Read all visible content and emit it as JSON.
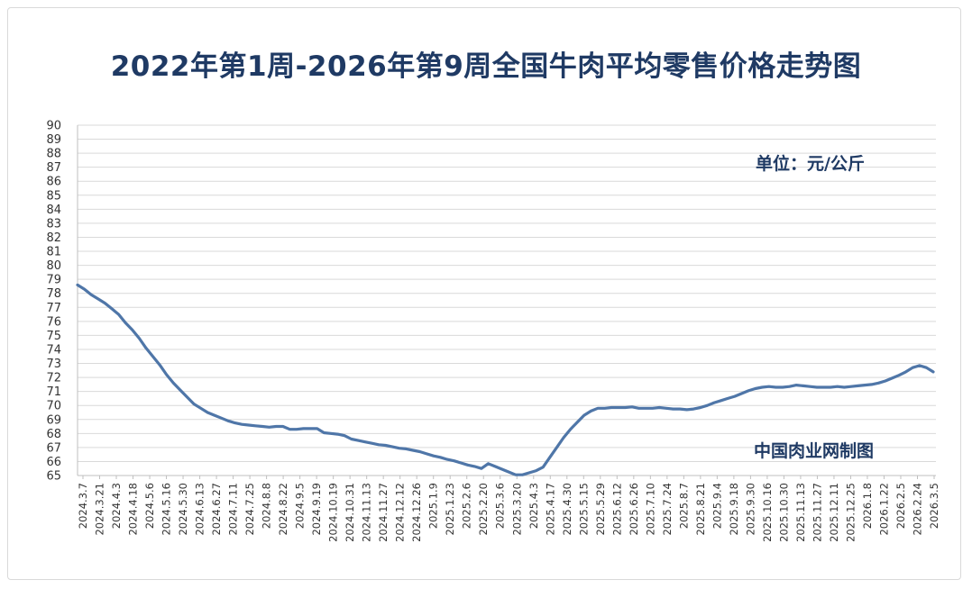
{
  "chart_data": {
    "type": "line",
    "title": "2022年第1周-2026年第9周全国牛肉平均零售价格走势图",
    "unit_label": "单位：元/公斤",
    "source_label": "中国肉业网制图",
    "ylim": [
      65,
      90
    ],
    "yticks": [
      65,
      66,
      67,
      68,
      69,
      70,
      71,
      72,
      73,
      74,
      75,
      76,
      77,
      78,
      79,
      80,
      81,
      82,
      83,
      84,
      85,
      86,
      87,
      88,
      89,
      90
    ],
    "grid": true,
    "line_color": "#4f76a8",
    "x_tick_labels": [
      "2024.3.7",
      "2024.3.21",
      "2024.4.3",
      "2024.4.18",
      "2024.5.6",
      "2024.5.16",
      "2024.5.30",
      "2024.6.13",
      "2024.6.27",
      "2024.7.11",
      "2024.7.25",
      "2024.8.8",
      "2024.8.22",
      "2024.9.5",
      "2024.9.19",
      "2024.10.19",
      "2024.10.31",
      "2024.11.13",
      "2024.11.27",
      "2024.12.12",
      "2024.12.26",
      "2025.1.9",
      "2025.1.23",
      "2025.2.6",
      "2025.2.20",
      "2025.3.6",
      "2025.3.20",
      "2025.4.3",
      "2025.4.17",
      "2025.4.30",
      "2025.5.15",
      "2025.5.29",
      "2025.6.12",
      "2025.6.26",
      "2025.7.10",
      "2025.7.24",
      "2025.8.7",
      "2025.8.21",
      "2025.9.4",
      "2025.9.18",
      "2025.9.30",
      "2025.10.16",
      "2025.10.30",
      "2025.11.13",
      "2025.11.27",
      "2025.12.11",
      "2025.12.25",
      "2026.1.8",
      "2026.1.22",
      "2026.2.5",
      "2026.2.24",
      "2026.3.5"
    ],
    "values": [
      78.6,
      78.3,
      77.9,
      77.6,
      77.3,
      76.9,
      76.5,
      75.9,
      75.4,
      74.8,
      74.1,
      73.5,
      72.9,
      72.2,
      71.6,
      71.1,
      70.6,
      70.1,
      69.8,
      69.5,
      69.3,
      69.1,
      68.9,
      68.75,
      68.65,
      68.6,
      68.55,
      68.5,
      68.45,
      68.5,
      68.5,
      68.3,
      68.3,
      68.35,
      68.35,
      68.35,
      68.05,
      68.0,
      67.95,
      67.85,
      67.6,
      67.5,
      67.4,
      67.3,
      67.2,
      67.15,
      67.05,
      66.95,
      66.9,
      66.8,
      66.7,
      66.55,
      66.4,
      66.3,
      66.15,
      66.05,
      65.9,
      65.75,
      65.65,
      65.5,
      65.85,
      65.65,
      65.45,
      65.25,
      65.05,
      65.05,
      65.2,
      65.35,
      65.6,
      66.3,
      67.0,
      67.7,
      68.3,
      68.8,
      69.3,
      69.6,
      69.8,
      69.8,
      69.85,
      69.85,
      69.85,
      69.9,
      69.8,
      69.8,
      69.8,
      69.85,
      69.8,
      69.75,
      69.75,
      69.7,
      69.75,
      69.85,
      70.0,
      70.2,
      70.35,
      70.5,
      70.65,
      70.85,
      71.05,
      71.2,
      71.3,
      71.35,
      71.3,
      71.3,
      71.35,
      71.45,
      71.4,
      71.35,
      71.3,
      71.3,
      71.3,
      71.35,
      71.3,
      71.35,
      71.4,
      71.45,
      71.5,
      71.6,
      71.75,
      71.95,
      72.15,
      72.4,
      72.7,
      72.85,
      72.7,
      72.4
    ]
  }
}
